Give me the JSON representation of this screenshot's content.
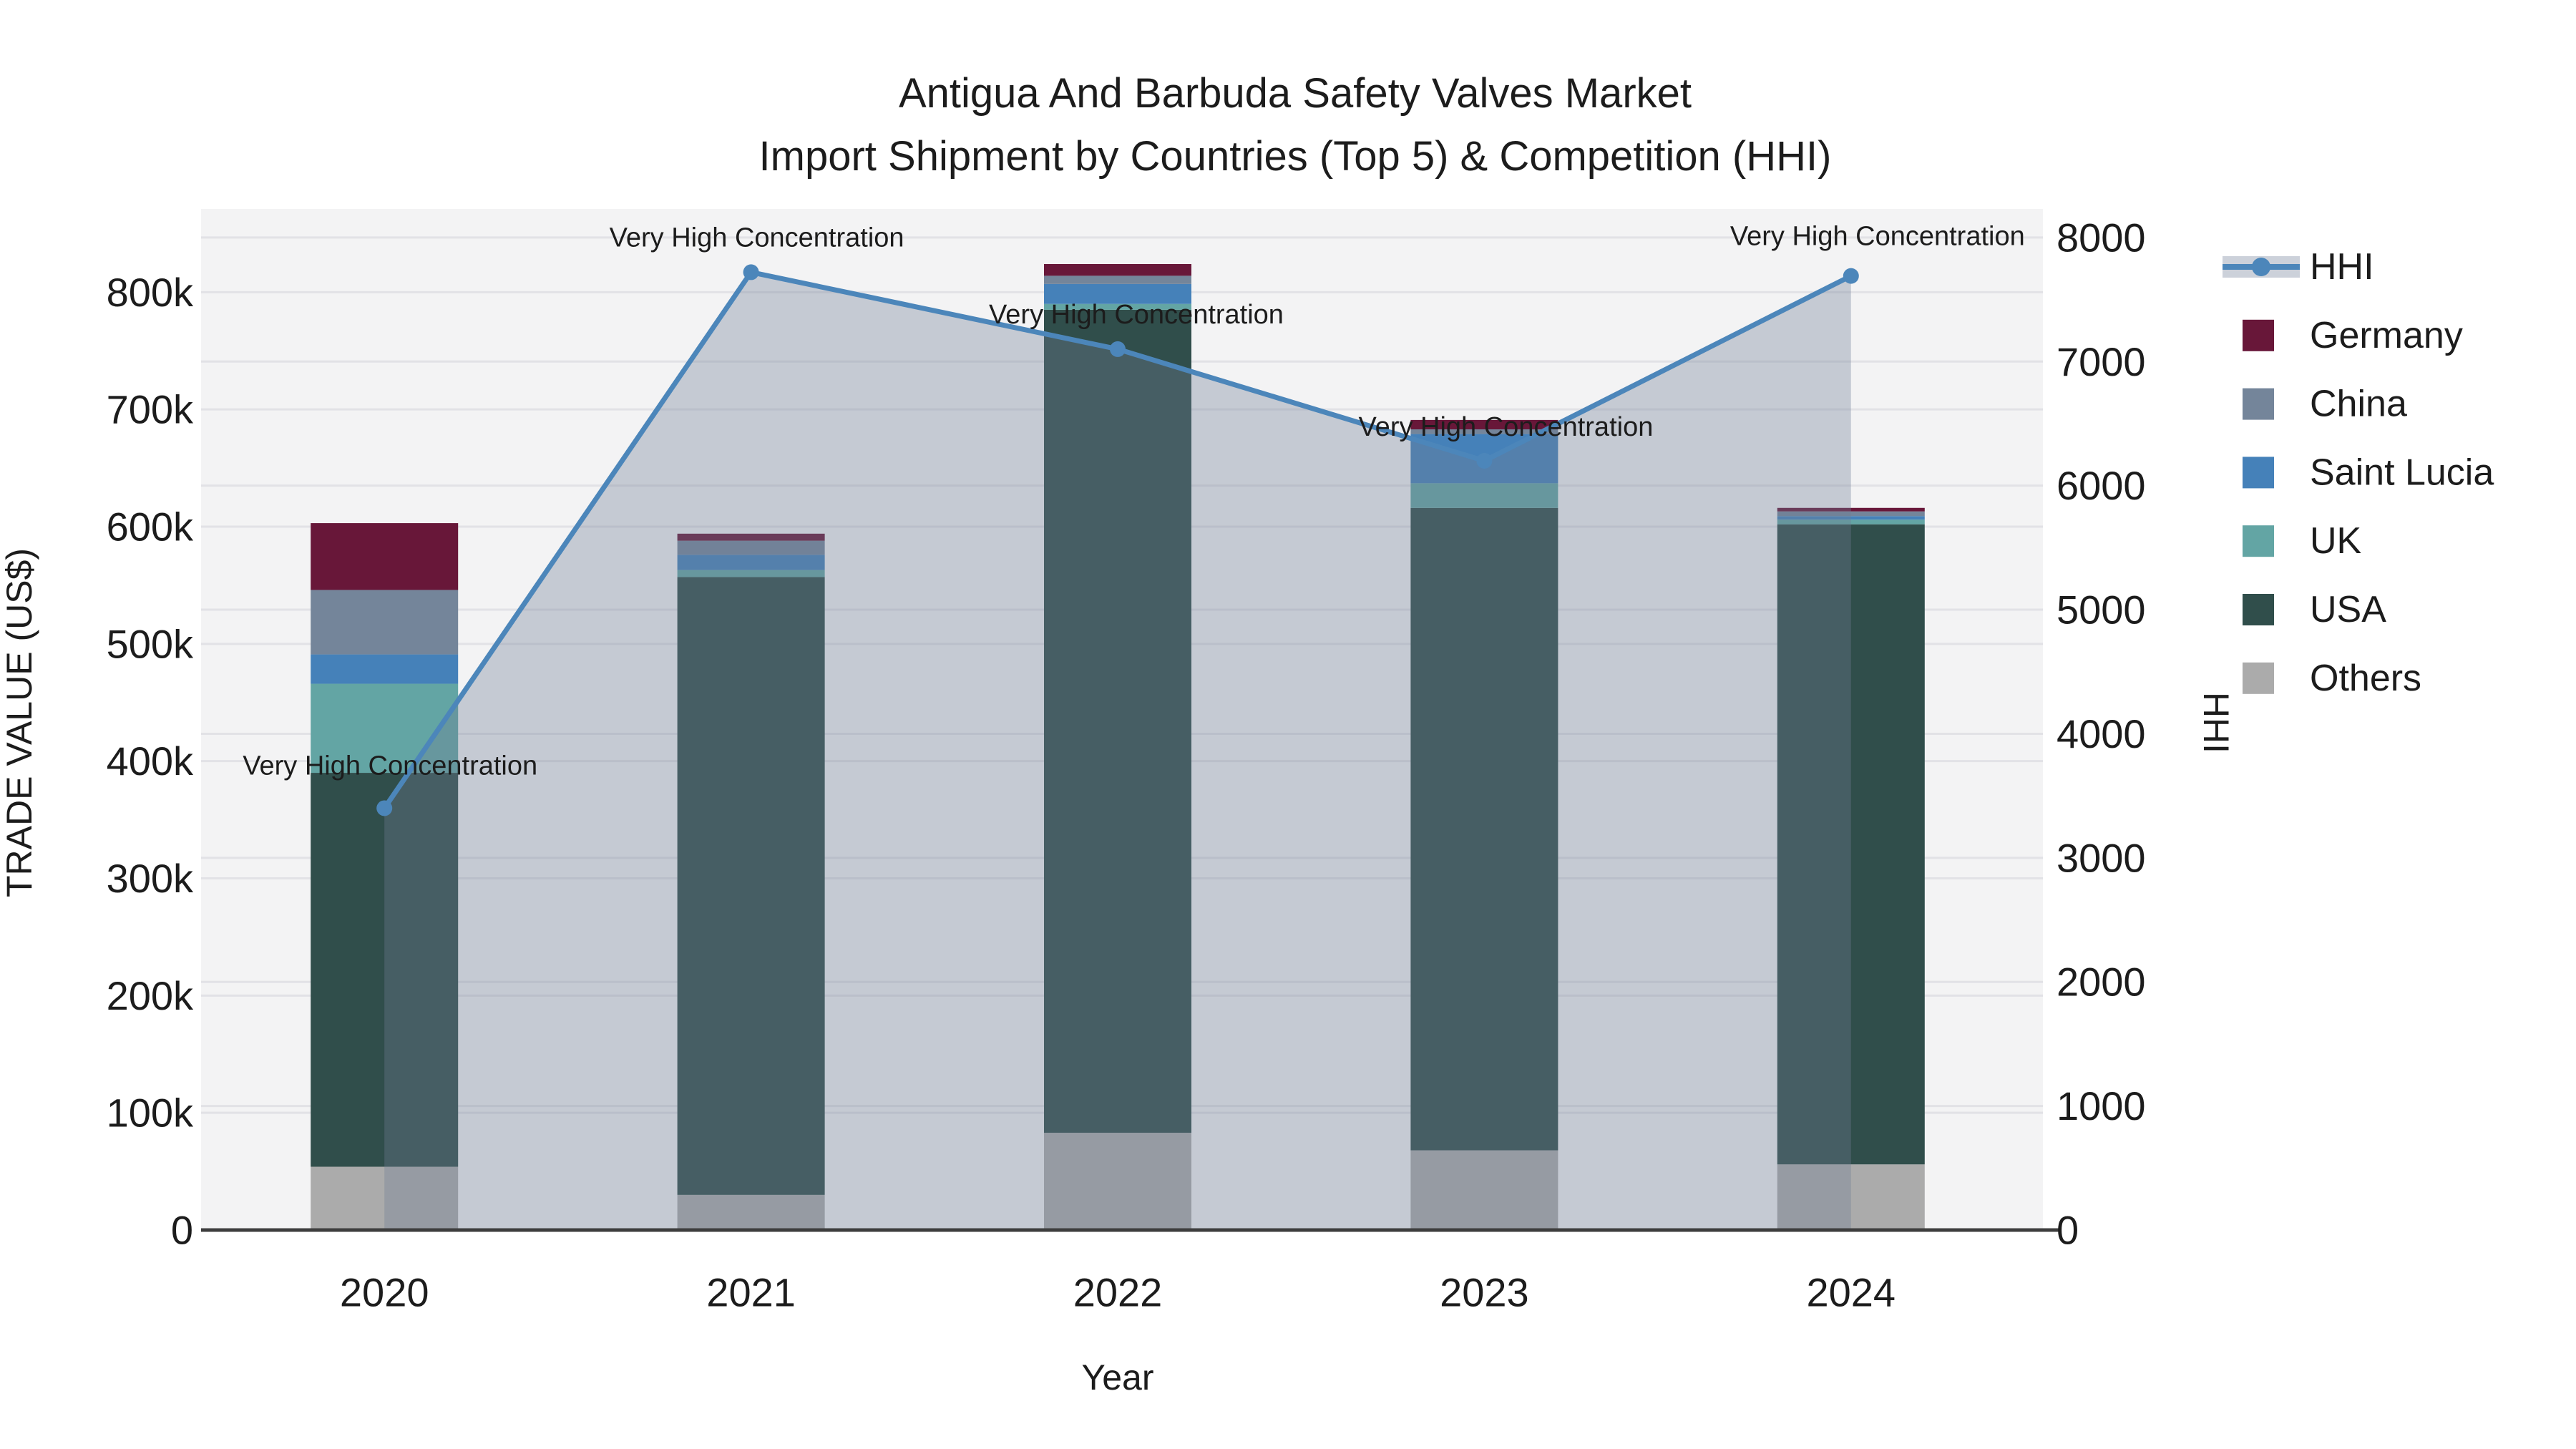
{
  "title": {
    "line1": "Antigua And Barbuda Safety Valves Market",
    "line2": "Import Shipment by Countries (Top 5) & Competition (HHI)"
  },
  "axes": {
    "x": {
      "title": "Year",
      "ticks": [
        "2020",
        "2021",
        "2022",
        "2023",
        "2024"
      ]
    },
    "y_left": {
      "title": "TRADE VALUE (US$)",
      "tick_labels": [
        "0",
        "100k",
        "200k",
        "300k",
        "400k",
        "500k",
        "600k",
        "700k",
        "800k"
      ],
      "tick_values": [
        0,
        100000,
        200000,
        300000,
        400000,
        500000,
        600000,
        700000,
        800000
      ]
    },
    "y_right": {
      "title": "HHI",
      "tick_labels": [
        "0",
        "1000",
        "2000",
        "3000",
        "4000",
        "5000",
        "6000",
        "7000",
        "8000"
      ],
      "tick_values": [
        0,
        1000,
        2000,
        3000,
        4000,
        5000,
        6000,
        7000,
        8000
      ]
    }
  },
  "colors": {
    "plot_bg": "#f3f3f4",
    "grid": "#e2e2e6",
    "axis_line": "#3d3d3d",
    "hhi_line": "#4c86ba",
    "hhi_fill": "rgba(113,125,150,0.35)",
    "text": "#1c1c1c"
  },
  "chart_data": {
    "type": "bar+line",
    "title": "Antigua And Barbuda Safety Valves Market — Import Shipment by Countries (Top 5) & Competition (HHI)",
    "categories": [
      "2020",
      "2021",
      "2022",
      "2023",
      "2024"
    ],
    "stack_order_bottom_to_top": [
      "Others",
      "USA",
      "UK",
      "Saint Lucia",
      "China",
      "Germany"
    ],
    "series": [
      {
        "name": "Germany",
        "color": "#681739",
        "values": [
          57000,
          6000,
          10000,
          8000,
          3000
        ]
      },
      {
        "name": "China",
        "color": "#74859a",
        "values": [
          55000,
          12000,
          7000,
          4000,
          4000
        ]
      },
      {
        "name": "Saint Lucia",
        "color": "#4581b9",
        "values": [
          25000,
          13000,
          17000,
          42000,
          3000
        ]
      },
      {
        "name": "UK",
        "color": "#63a5a4",
        "values": [
          76000,
          6000,
          5000,
          21000,
          4000
        ]
      },
      {
        "name": "USA",
        "color": "#304e4b",
        "values": [
          336000,
          527000,
          702000,
          548000,
          546000
        ]
      },
      {
        "name": "Others",
        "color": "#ababab",
        "values": [
          54000,
          30000,
          83000,
          68000,
          56000
        ]
      }
    ],
    "bar_totals": [
      603000,
      594000,
      824000,
      691000,
      616000
    ],
    "line_series": {
      "name": "HHI",
      "values": [
        3400,
        7720,
        7100,
        6200,
        7690
      ]
    },
    "annotations": [
      "Very High Concentration",
      "Very High Concentration",
      "Very High Concentration",
      "Very High Concentration",
      "Very High Concentration"
    ],
    "xlabel": "Year",
    "ylabel_left": "TRADE VALUE (US$)",
    "ylabel_right": "HHI",
    "y_left_range": [
      0,
      871000
    ],
    "y_right_range": [
      0,
      8230
    ],
    "legend_position": "right",
    "grid": true
  }
}
